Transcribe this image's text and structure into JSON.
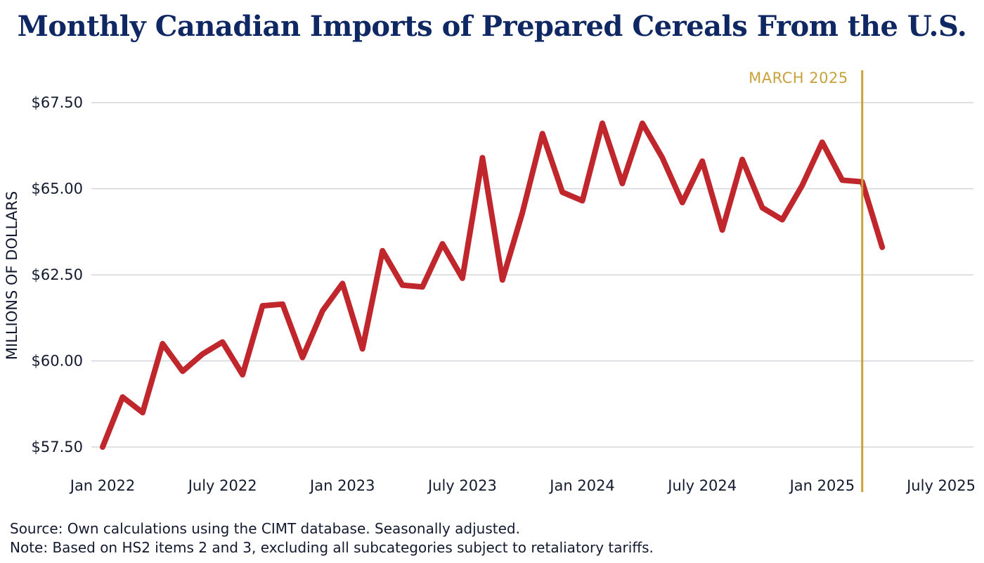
{
  "title": "Monthly Canadian Imports of Prepared Cereals From the U.S.",
  "footnotes": {
    "source": "Source: Own calculations using the CIMT database. Seasonally adjusted.",
    "note": "Note: Based on HS2 items 2 and 3, excluding all subcategories subject to retaliatory tariffs."
  },
  "colors": {
    "line": "#c0272d",
    "marker": "#c9a23c",
    "title": "#0f2762",
    "grid": "#d5d6da"
  },
  "chart_data": {
    "type": "line",
    "title": "Monthly Canadian Imports of Prepared Cereals From the U.S.",
    "xlabel": "",
    "ylabel": "MILLIONS OF DOLLARS",
    "ylim": [
      57.5,
      67.5
    ],
    "xlim": [
      "2022-01",
      "2025-07"
    ],
    "grid": true,
    "y_ticks": [
      {
        "value": 57.5,
        "label": "$57.50"
      },
      {
        "value": 60.0,
        "label": "$60.00"
      },
      {
        "value": 62.5,
        "label": "$62.50"
      },
      {
        "value": 65.0,
        "label": "$65.00"
      },
      {
        "value": 67.5,
        "label": "$67.50"
      }
    ],
    "x_ticks": [
      {
        "value": "2022-01",
        "label": "Jan 2022"
      },
      {
        "value": "2022-07",
        "label": "July 2022"
      },
      {
        "value": "2023-01",
        "label": "Jan 2023"
      },
      {
        "value": "2023-07",
        "label": "July 2023"
      },
      {
        "value": "2024-01",
        "label": "Jan 2024"
      },
      {
        "value": "2024-07",
        "label": "July 2024"
      },
      {
        "value": "2025-01",
        "label": "Jan 2025"
      },
      {
        "value": "2025-07",
        "label": "July 2025"
      }
    ],
    "annotation": {
      "x": "2025-03",
      "label": "MARCH 2025"
    },
    "x": [
      "2022-01",
      "2022-02",
      "2022-03",
      "2022-04",
      "2022-05",
      "2022-06",
      "2022-07",
      "2022-08",
      "2022-09",
      "2022-10",
      "2022-11",
      "2022-12",
      "2023-01",
      "2023-02",
      "2023-03",
      "2023-04",
      "2023-05",
      "2023-06",
      "2023-07",
      "2023-08",
      "2023-09",
      "2023-10",
      "2023-11",
      "2023-12",
      "2024-01",
      "2024-02",
      "2024-03",
      "2024-04",
      "2024-05",
      "2024-06",
      "2024-07",
      "2024-08",
      "2024-09",
      "2024-10",
      "2024-11",
      "2024-12",
      "2025-01",
      "2025-02",
      "2025-03",
      "2025-04"
    ],
    "series": [
      {
        "values": [
          57.5,
          58.95,
          58.5,
          60.5,
          59.7,
          60.2,
          60.55,
          59.6,
          61.6,
          61.65,
          60.1,
          61.45,
          62.25,
          60.35,
          63.2,
          62.2,
          62.15,
          63.4,
          62.4,
          65.9,
          62.35,
          64.3,
          66.6,
          64.9,
          64.65,
          66.9,
          65.15,
          66.9,
          65.9,
          64.6,
          65.8,
          63.8,
          65.85,
          64.45,
          64.1,
          65.1,
          66.35,
          65.25,
          65.2,
          63.3
        ]
      }
    ]
  }
}
